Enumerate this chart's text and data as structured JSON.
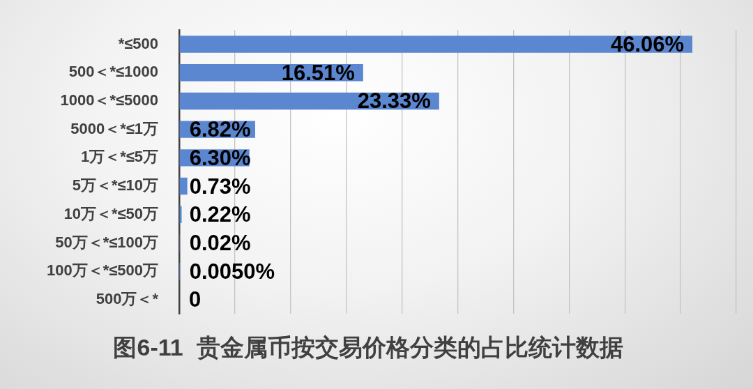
{
  "chart_data": {
    "type": "bar",
    "orientation": "horizontal",
    "title": "图6-11  贵金属币按交易价格分类的占比统计数据",
    "categories": [
      "*≤500",
      "500＜*≤1000",
      "1000＜*≤5000",
      "5000＜*≤1万",
      "1万＜*≤5万",
      "5万＜*≤10万",
      "10万＜*≤50万",
      "50万＜*≤100万",
      "100万＜*≤500万",
      "500万＜*"
    ],
    "values": [
      46.06,
      16.51,
      23.33,
      6.82,
      6.3,
      0.73,
      0.22,
      0.02,
      0.005,
      0
    ],
    "value_labels": [
      "46.06%",
      "16.51%",
      "23.33%",
      "6.82%",
      "6.30%",
      "0.73%",
      "0.22%",
      "0.02%",
      "0.0050%",
      "0"
    ],
    "color": "#5b87d0",
    "xlim": [
      0,
      50
    ],
    "xticks": [
      {
        "value": 0,
        "label": null
      },
      {
        "value": 5,
        "label": null
      },
      {
        "value": 10,
        "label": null
      },
      {
        "value": 15,
        "label": null
      },
      {
        "value": 20,
        "label": null
      },
      {
        "value": 25,
        "label": null
      },
      {
        "value": 30,
        "label": null
      },
      {
        "value": 35,
        "label": null
      },
      {
        "value": 40,
        "label": null
      },
      {
        "value": 45,
        "label": null
      },
      {
        "value": 50,
        "label": null
      }
    ],
    "grid": "x",
    "tick_labels": "y"
  }
}
